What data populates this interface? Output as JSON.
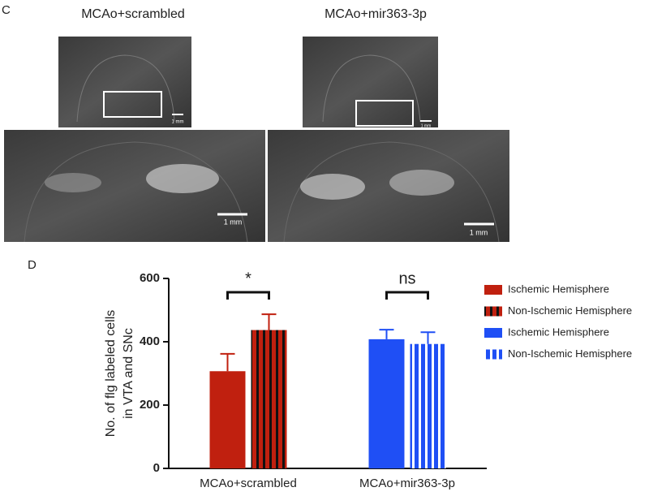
{
  "figure": {
    "panel_c": "C",
    "panel_d": "D",
    "image_titles": [
      "MCAo+scrambled",
      "MCAo+mir363-3p"
    ],
    "scale_bars": [
      "1 mm",
      "1 mm",
      "1 mm",
      "1 mm"
    ]
  },
  "chart_data": {
    "type": "bar",
    "ylabel": [
      "No. of flg labeled cells",
      "in VTA and SNc"
    ],
    "categories": [
      "MCAo+scrambled",
      "MCAo+mir363-3p"
    ],
    "series": [
      {
        "name": "Ischemic Hemisphere",
        "color": "#c0200f",
        "values": [
          307,
          null
        ],
        "errors": [
          55,
          null
        ]
      },
      {
        "name": "Non-Ischemic Hemisphere",
        "color": "#c0200f",
        "hatch_color": "#111111",
        "values": [
          437,
          null
        ],
        "errors": [
          50,
          null
        ]
      },
      {
        "name": "Ischemic Hemisphere",
        "color": "#1f4ff5",
        "values": [
          null,
          408
        ],
        "errors": [
          null,
          30
        ]
      },
      {
        "name": "Non-Ischemic Hemisphere",
        "color": "#1f4ff5",
        "hatch_color": "#ffffff",
        "values": [
          null,
          393
        ],
        "errors": [
          null,
          37
        ]
      }
    ],
    "annotations": [
      "*",
      "ns"
    ],
    "ylim": [
      0,
      600
    ],
    "yticks": [
      0,
      200,
      400,
      600
    ],
    "legend": "right"
  }
}
